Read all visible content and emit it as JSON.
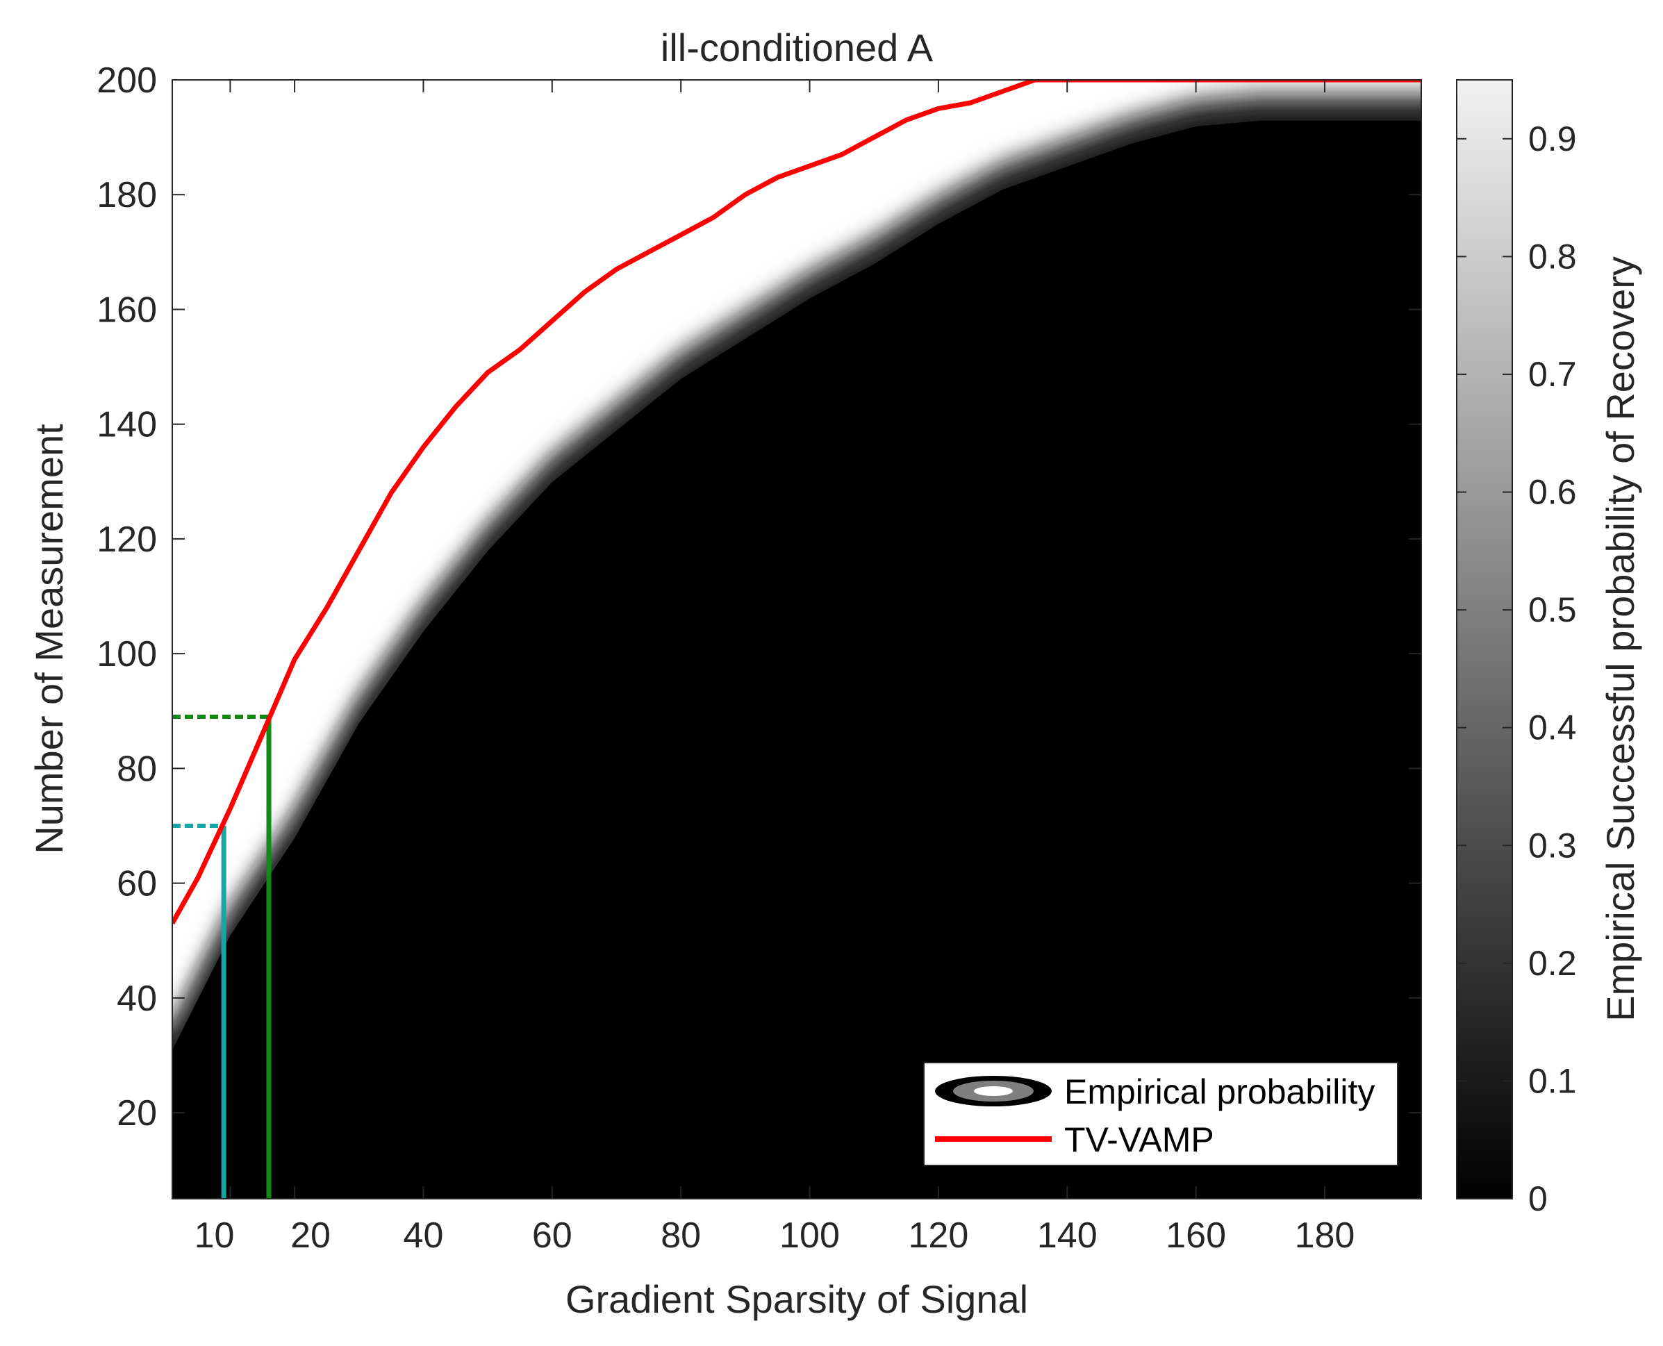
{
  "chart_data": {
    "type": "heatmap",
    "title": "ill-conditioned A",
    "xlabel": "Gradient Sparsity of Signal",
    "ylabel": "Number of Measurement",
    "xlim": [
      1,
      195
    ],
    "ylim": [
      5,
      200
    ],
    "x_ticks": [
      "10",
      "20",
      "40",
      "60",
      "80",
      "100",
      "120",
      "140",
      "160",
      "180"
    ],
    "x_tick_values": [
      10,
      20,
      40,
      60,
      80,
      100,
      120,
      140,
      160,
      180
    ],
    "y_ticks": [
      "20",
      "40",
      "60",
      "80",
      "100",
      "120",
      "140",
      "160",
      "180",
      "200"
    ],
    "y_tick_values": [
      20,
      40,
      60,
      80,
      100,
      120,
      140,
      160,
      180,
      200
    ],
    "colorbar": {
      "label": "Empirical Successful probability of Recovery",
      "ticks": [
        "0",
        "0.1",
        "0.2",
        "0.3",
        "0.4",
        "0.5",
        "0.6",
        "0.7",
        "0.8",
        "0.9"
      ],
      "tick_values": [
        0,
        0.1,
        0.2,
        0.3,
        0.4,
        0.5,
        0.6,
        0.7,
        0.8,
        0.9
      ],
      "range": [
        0,
        0.95
      ],
      "colormap": "gray"
    },
    "series": [
      {
        "name": "Empirical probability",
        "kind": "filled-contour",
        "boundary_p05": {
          "x": [
            1,
            10,
            20,
            30,
            40,
            50,
            60,
            70,
            80,
            90,
            100,
            110,
            120,
            130,
            140,
            150,
            160,
            170,
            180,
            195
          ],
          "y": [
            35,
            55,
            72,
            92,
            108,
            122,
            134,
            143,
            152,
            159,
            166,
            172,
            179,
            185,
            189,
            193,
            196,
            197,
            197,
            197
          ]
        }
      },
      {
        "name": "TV-VAMP",
        "kind": "line",
        "color": "#ff0000",
        "x": [
          1,
          5,
          10,
          15,
          20,
          25,
          30,
          35,
          40,
          45,
          50,
          55,
          60,
          65,
          70,
          75,
          80,
          85,
          90,
          95,
          100,
          105,
          110,
          115,
          120,
          125,
          130,
          135,
          140,
          145,
          150,
          155,
          160,
          165,
          170,
          175,
          180,
          185,
          190,
          195
        ],
        "y": [
          53,
          61,
          73,
          86,
          99,
          108,
          118,
          128,
          136,
          143,
          149,
          153,
          158,
          163,
          167,
          170,
          173,
          176,
          180,
          183,
          185,
          187,
          190,
          193,
          195,
          196,
          198,
          200,
          200,
          200,
          200,
          200,
          200,
          200,
          200,
          200,
          200,
          200,
          200,
          200
        ]
      }
    ],
    "markers": [
      {
        "name": "cyan",
        "color": "#17a6a6",
        "x": 9,
        "y": 70
      },
      {
        "name": "green",
        "color": "#138a13",
        "x": 16,
        "y": 89
      }
    ],
    "legend": {
      "position": "bottom-right",
      "entries": [
        "Empirical probability",
        "TV-VAMP"
      ]
    }
  }
}
